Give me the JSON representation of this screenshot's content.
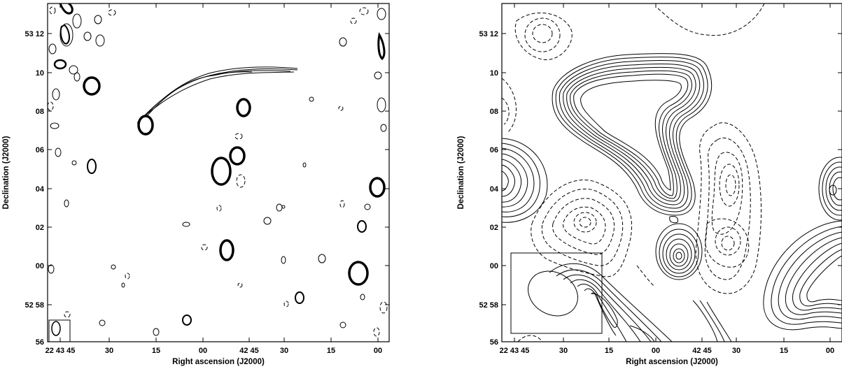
{
  "panels": [
    {
      "id": "left",
      "xlabel": "Right ascension (J2000)",
      "ylabel": "Declination (J2000)",
      "x_ticks": [
        "22 43 45",
        "30",
        "15",
        "00",
        "42 45",
        "30",
        "15",
        "00"
      ],
      "y_ticks": [
        "53 12",
        "10",
        "08",
        "06",
        "04",
        "02",
        "00",
        "52 58",
        "56"
      ]
    },
    {
      "id": "right",
      "xlabel": "Right ascension (J2000)",
      "ylabel": "Declination (J2000)",
      "x_ticks": [
        "22 43 45",
        "30",
        "15",
        "00",
        "42 45",
        "30",
        "15",
        "00"
      ],
      "y_ticks": [
        "53 12",
        "10",
        "08",
        "06",
        "04",
        "02",
        "00",
        "52 58",
        "56"
      ]
    }
  ]
}
